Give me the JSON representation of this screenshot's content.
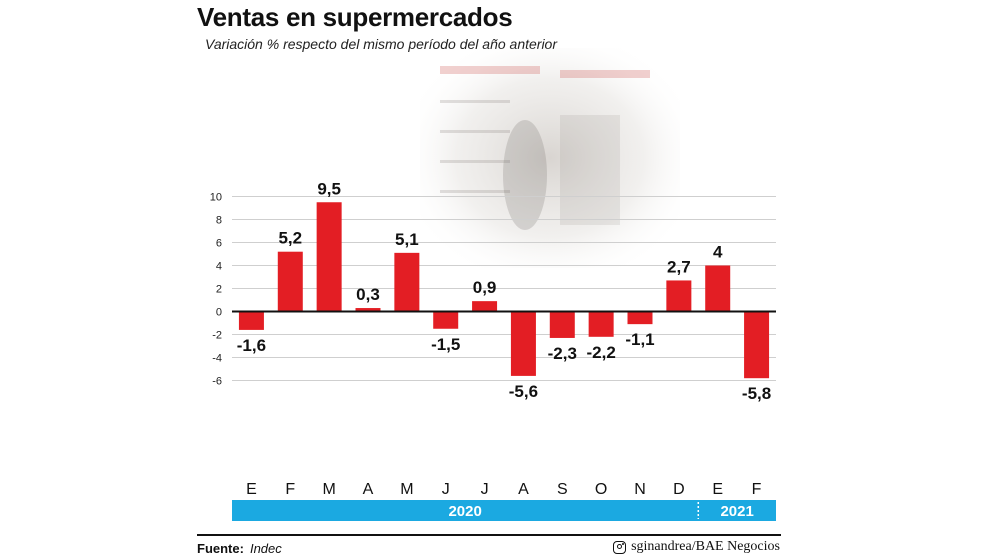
{
  "title": "Ventas en supermercados",
  "subtitle": "Variación % respecto del mismo período del año anterior",
  "source_label": "Fuente:",
  "source_value": "Indec",
  "credit": "sginandrea/BAE Negocios",
  "icons": [
    "instagram-icon"
  ],
  "colors": {
    "bar": "#e31e24",
    "year_band": "#1ba9e1",
    "grid": "#cfcfcf"
  },
  "chart_data": {
    "type": "bar",
    "title": "Ventas en supermercados",
    "subtitle": "Variación % respecto del mismo período del año anterior",
    "xlabel": "",
    "ylabel": "",
    "ylim": [
      -6.8,
      10.8
    ],
    "yticks": [
      10,
      8,
      6,
      4,
      2,
      0,
      -2,
      -4,
      -6
    ],
    "grid": true,
    "categories": [
      "E",
      "F",
      "M",
      "A",
      "M",
      "J",
      "J",
      "A",
      "S",
      "O",
      "N",
      "D",
      "E",
      "F"
    ],
    "values": [
      -1.6,
      5.2,
      9.5,
      0.3,
      5.1,
      -1.5,
      0.9,
      -5.6,
      -2.3,
      -2.2,
      -1.1,
      2.7,
      4,
      -5.8
    ],
    "value_labels": [
      "-1,6",
      "5,2",
      "9,5",
      "0,3",
      "5,1",
      "-1,5",
      "0,9",
      "-5,6",
      "-2,3",
      "-2,2",
      "-1,1",
      "2,7",
      "4",
      "-5,8"
    ],
    "years": [
      {
        "label": "2020",
        "start_index": 0,
        "end_index": 11
      },
      {
        "label": "2021",
        "start_index": 12,
        "end_index": 13
      }
    ]
  }
}
